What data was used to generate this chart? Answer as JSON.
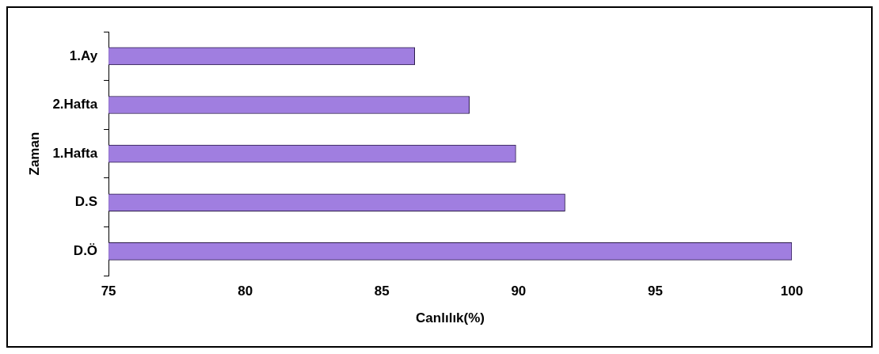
{
  "chart_data": {
    "type": "bar",
    "orientation": "horizontal",
    "xlabel": "Canlılık(%)",
    "ylabel": "Zaman",
    "categories": [
      "1.Ay",
      "2.Hafta",
      "1.Hafta",
      "D.S",
      "D.Ö"
    ],
    "values": [
      86.2,
      88.2,
      89.9,
      91.7,
      100
    ],
    "color": "#a07ee0",
    "xlim": [
      75,
      100
    ],
    "xticks": [
      75,
      80,
      85,
      90,
      95,
      100
    ],
    "grid": false,
    "legend": false
  }
}
